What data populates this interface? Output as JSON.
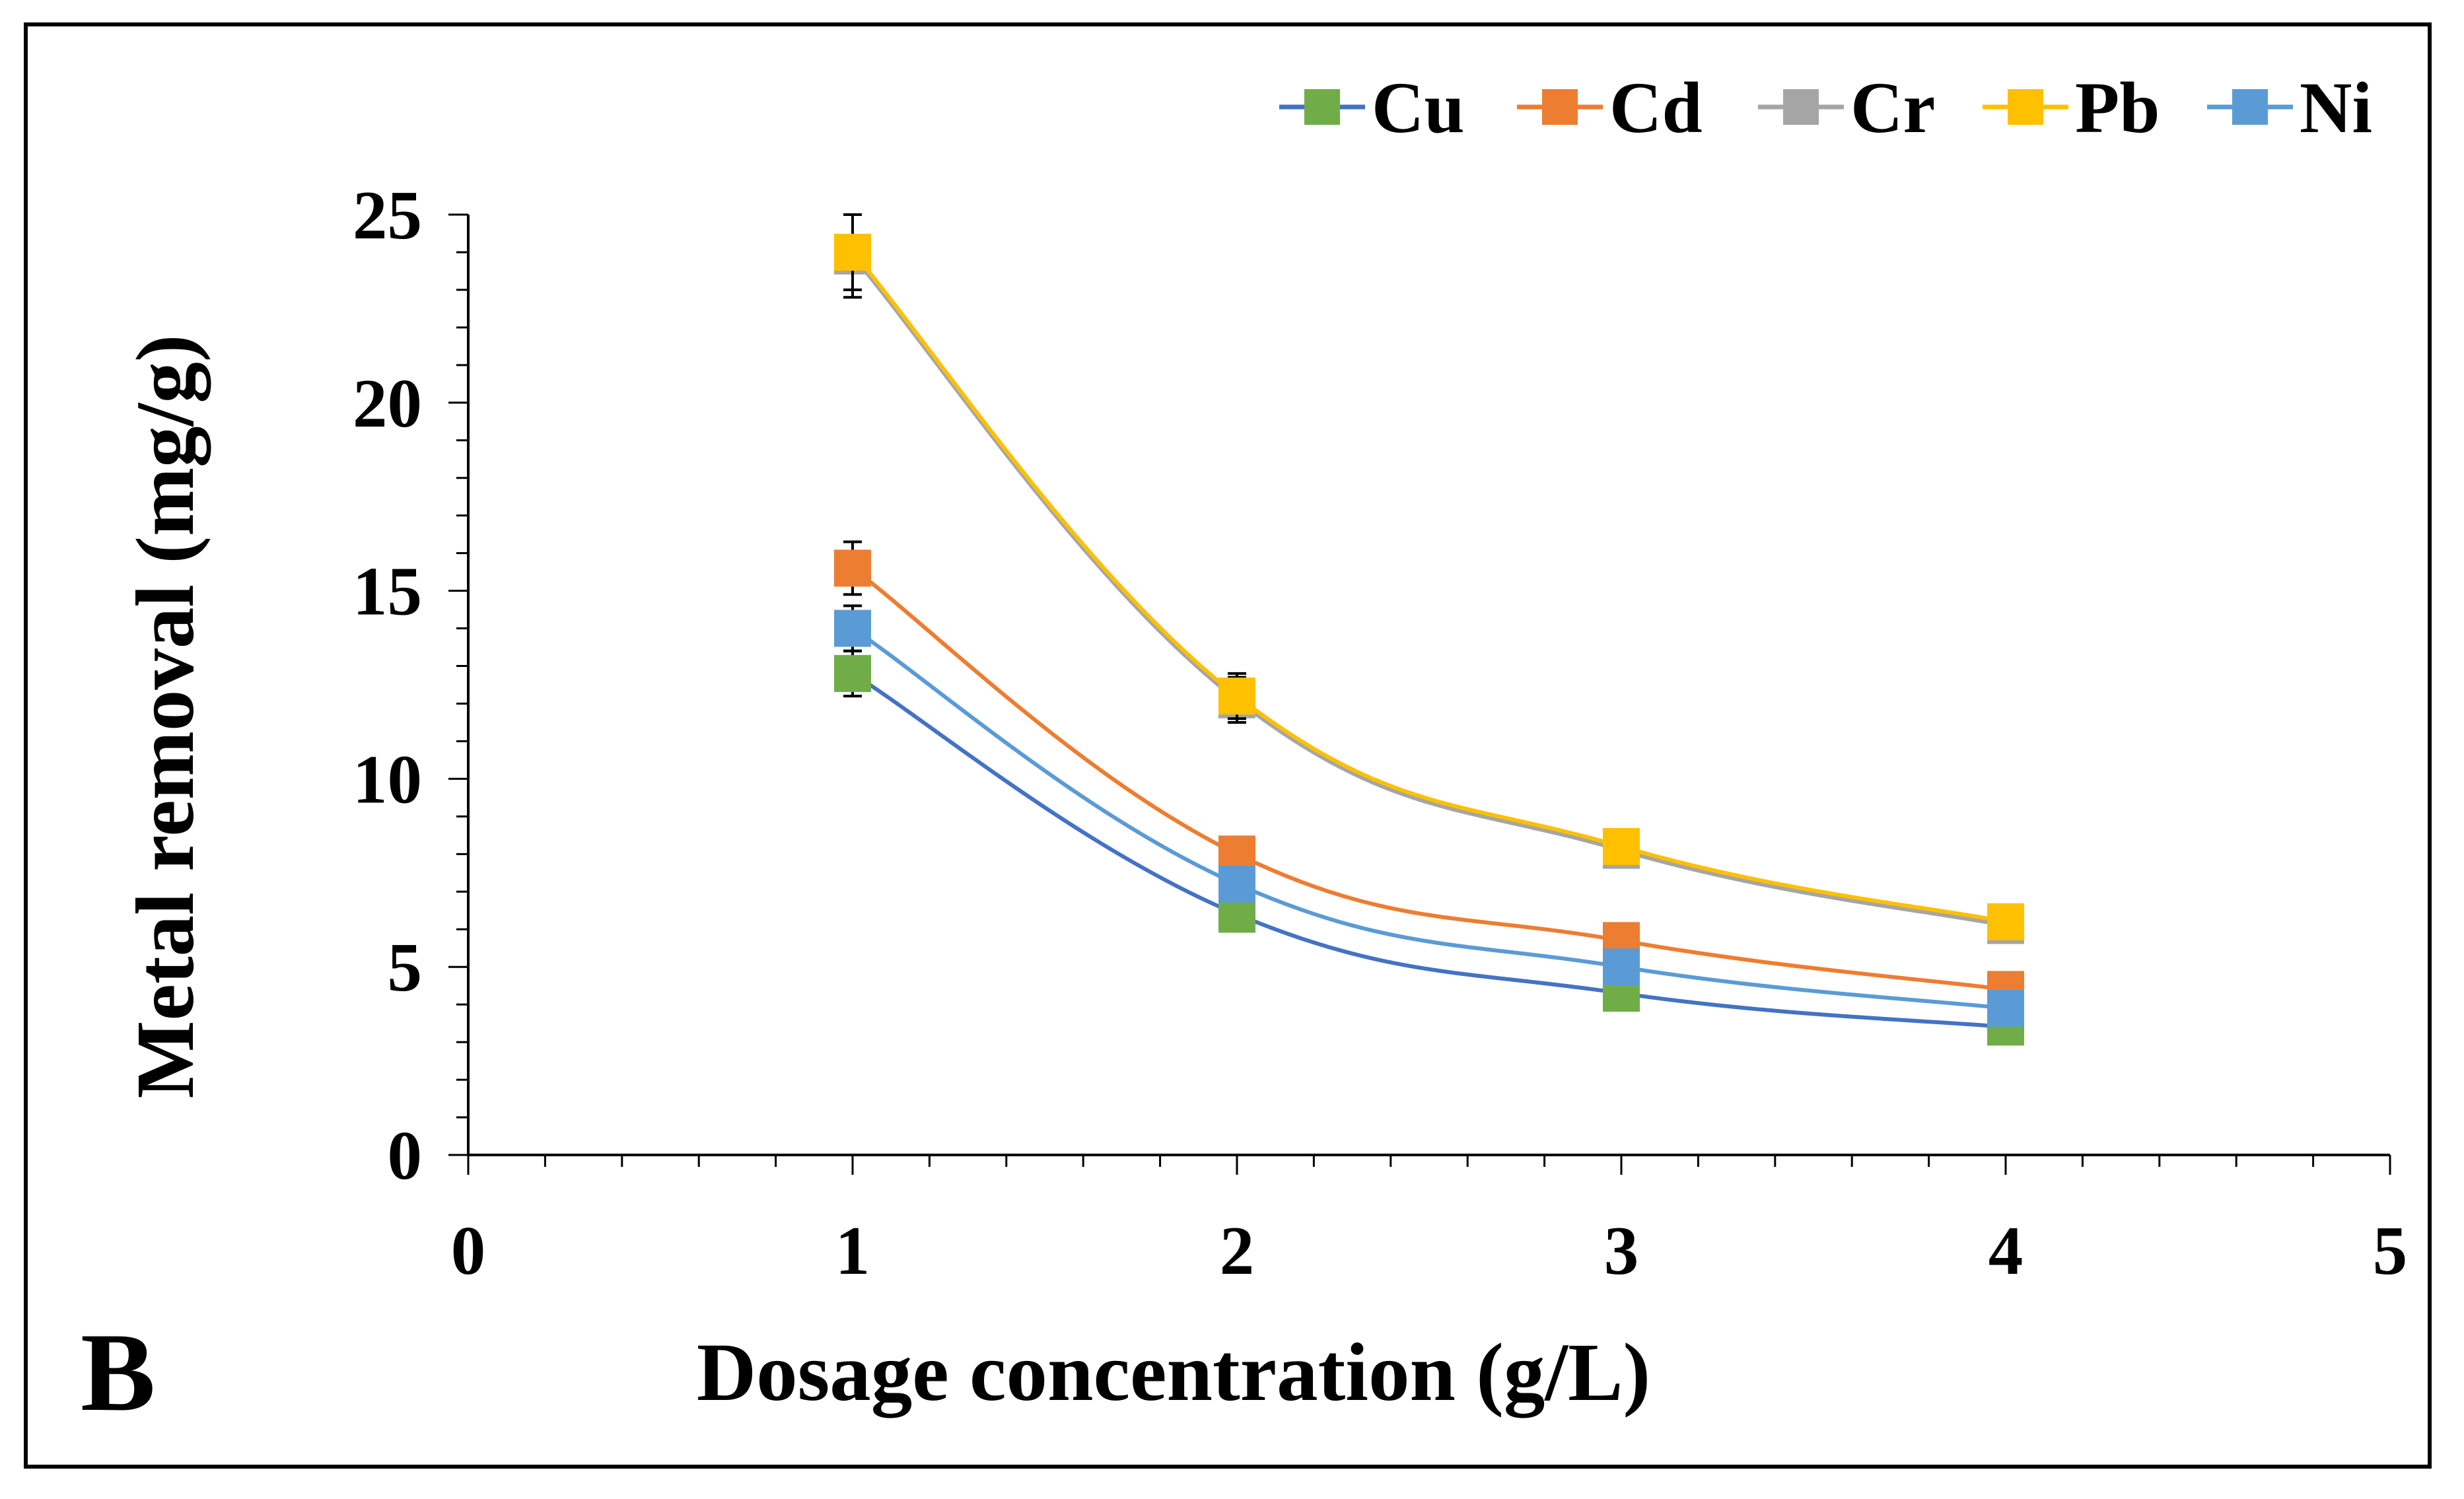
{
  "panel_label": "B",
  "chart_data": {
    "type": "scatter",
    "subtype": "smooth-line-with-markers",
    "title": "",
    "xlabel": "Dosage concentration (g/L)",
    "ylabel": "Metal removal (mg/g)",
    "xlim": [
      0,
      5
    ],
    "ylim": [
      0,
      25
    ],
    "x_ticks": [
      "0",
      "1",
      "2",
      "3",
      "4",
      "5"
    ],
    "y_ticks": [
      "0",
      "5",
      "10",
      "15",
      "20",
      "25"
    ],
    "grid": false,
    "legend_position": "top-right",
    "x": [
      1,
      2,
      3,
      4
    ],
    "series": [
      {
        "name": "Cu",
        "marker_color": "#70AD47",
        "line_color": "#4472C4",
        "values": [
          12.8,
          6.4,
          4.3,
          3.4
        ],
        "error": [
          0.6,
          0.3,
          0.2,
          0.2
        ]
      },
      {
        "name": "Cd",
        "marker_color": "#ED7D31",
        "line_color": "#ED7D31",
        "values": [
          15.6,
          8.0,
          5.7,
          4.4
        ],
        "error": [
          0.7,
          0.3,
          0.2,
          0.2
        ]
      },
      {
        "name": "Cr",
        "marker_color": "#A5A5A5",
        "line_color": "#A5A5A5",
        "values": [
          23.9,
          12.1,
          8.1,
          6.1
        ],
        "error": [
          1.1,
          0.6,
          0.3,
          0.2
        ]
      },
      {
        "name": "Pb",
        "marker_color": "#FFC000",
        "line_color": "#FFC000",
        "values": [
          24.0,
          12.2,
          8.2,
          6.2
        ],
        "error": [
          1.0,
          0.6,
          0.3,
          0.2
        ]
      },
      {
        "name": "Ni",
        "marker_color": "#5B9BD5",
        "line_color": "#5B9BD5",
        "values": [
          14.0,
          7.2,
          5.0,
          3.9
        ],
        "error": [
          0.6,
          0.3,
          0.2,
          0.2
        ]
      }
    ]
  }
}
